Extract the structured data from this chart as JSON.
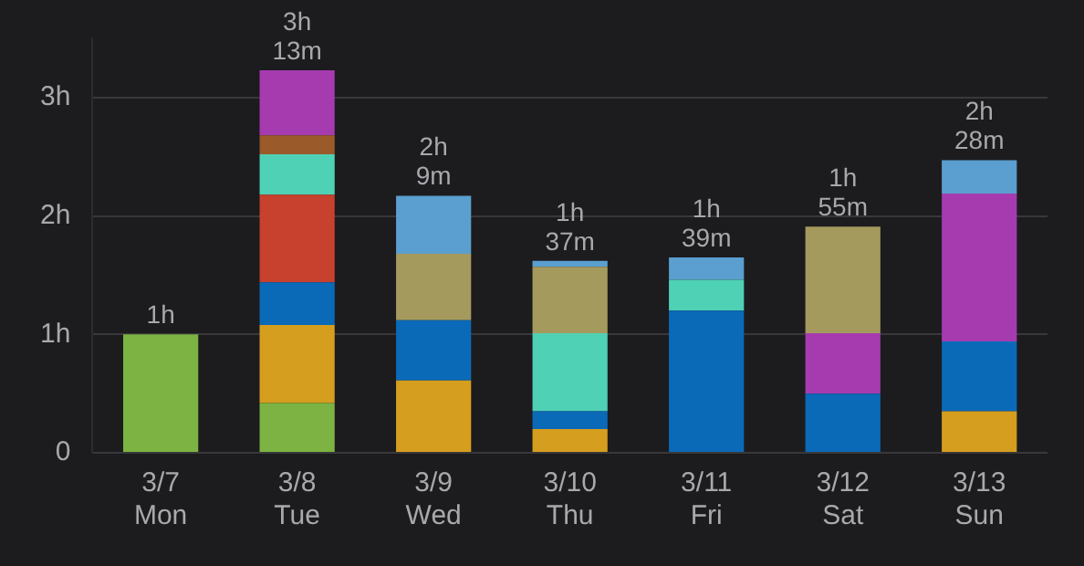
{
  "chart_data": {
    "type": "bar",
    "stacked": true,
    "categories": [
      "3/7\nMon",
      "3/8\nTue",
      "3/9\nWed",
      "3/10\nThu",
      "3/11\nFri",
      "3/12\nSat",
      "3/13\nSun"
    ],
    "series": [
      {
        "color": "#7cb342",
        "values": [
          1,
          0.42,
          null,
          null,
          null,
          null,
          null
        ]
      },
      {
        "color": "#d69e1e",
        "values": [
          null,
          0.66,
          0.61,
          0.2,
          null,
          null,
          0.35
        ]
      },
      {
        "color": "#0a6ab8",
        "values": [
          null,
          0.36,
          0.51,
          0.15,
          1.2,
          0.5,
          0.59
        ]
      },
      {
        "color": "#c8402e",
        "values": [
          null,
          0.74,
          null,
          null,
          null,
          null,
          null
        ]
      },
      {
        "color": "#4fd1b5",
        "values": [
          null,
          0.34,
          null,
          0.66,
          0.26,
          null,
          null
        ]
      },
      {
        "color": "#9a5a2a",
        "values": [
          null,
          0.16,
          null,
          null,
          null,
          null,
          null
        ]
      },
      {
        "color": "#a63bb0",
        "values": [
          null,
          0.55,
          null,
          null,
          null,
          0.51,
          1.25
        ]
      },
      {
        "color": "#a59a5e",
        "values": [
          null,
          null,
          0.56,
          0.56,
          null,
          0.9,
          null
        ]
      },
      {
        "color": "#5a9fcf",
        "values": [
          null,
          null,
          0.49,
          0.05,
          0.19,
          null,
          0.28
        ]
      }
    ],
    "ylim": [
      0,
      3.5
    ],
    "yticks": [
      0,
      {
        "value": 1,
        "label": "1h"
      },
      {
        "value": 2,
        "label": "2h"
      },
      {
        "value": 3,
        "label": "3h"
      }
    ],
    "grid": "y",
    "legend": false,
    "totals": [
      "1h",
      "3h\n13m",
      "2h\n9m",
      "1h\n37m",
      "1h\n39m",
      "1h\n55m",
      "2h\n28m"
    ]
  }
}
